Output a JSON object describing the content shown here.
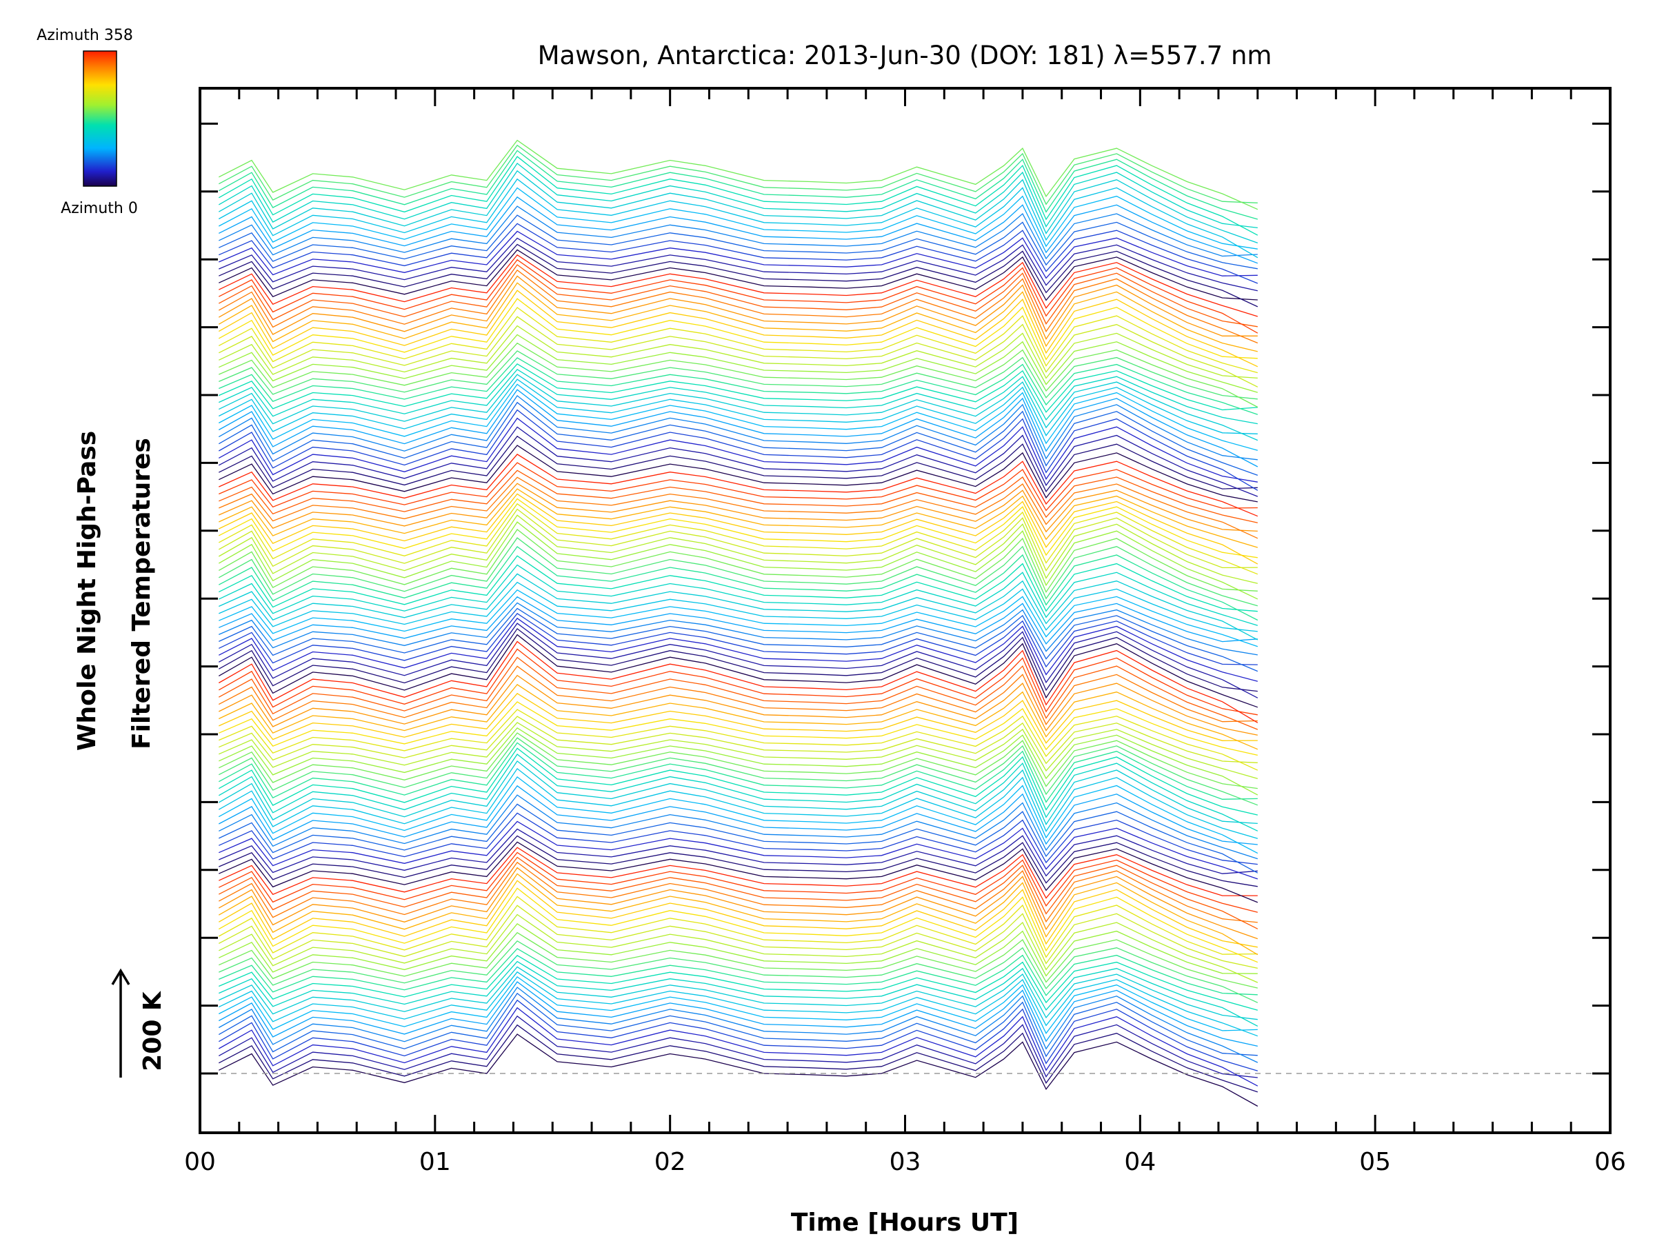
{
  "chart_data": {
    "type": "line",
    "title": "Mawson, Antarctica: 2013-Jun-30 (DOY: 181) λ=557.7 nm",
    "xlabel": "Time [Hours UT]",
    "ylabel_line1": "Whole Night High-Pass",
    "ylabel_line2": "Filtered Temperatures",
    "scale_label": "200 K",
    "xlim": [
      0,
      6
    ],
    "xtick_labels": [
      "00",
      "01",
      "02",
      "03",
      "04",
      "05",
      "06"
    ],
    "colorbar": {
      "top_label": "Azimuth 358",
      "bottom_label": "Azimuth 0",
      "min": 0,
      "max": 358
    },
    "stack": {
      "traces": 128,
      "traces_per_group": 28,
      "baseline_label": "dashed zero line under the lowest trace"
    },
    "x": [
      0.08,
      0.22,
      0.31,
      0.48,
      0.65,
      0.87,
      1.07,
      1.22,
      1.35,
      1.52,
      1.75,
      2.0,
      2.15,
      2.4,
      2.6,
      2.75,
      2.9,
      3.05,
      3.3,
      3.42,
      3.5,
      3.6,
      3.72,
      3.9,
      4.05,
      4.2,
      4.35,
      4.5
    ],
    "y_profile_K": [
      5,
      30,
      -18,
      10,
      5,
      -14,
      8,
      0,
      60,
      18,
      10,
      30,
      22,
      0,
      -2,
      -4,
      0,
      20,
      -6,
      22,
      48,
      -24,
      32,
      48,
      22,
      -2,
      -20,
      -34
    ]
  }
}
